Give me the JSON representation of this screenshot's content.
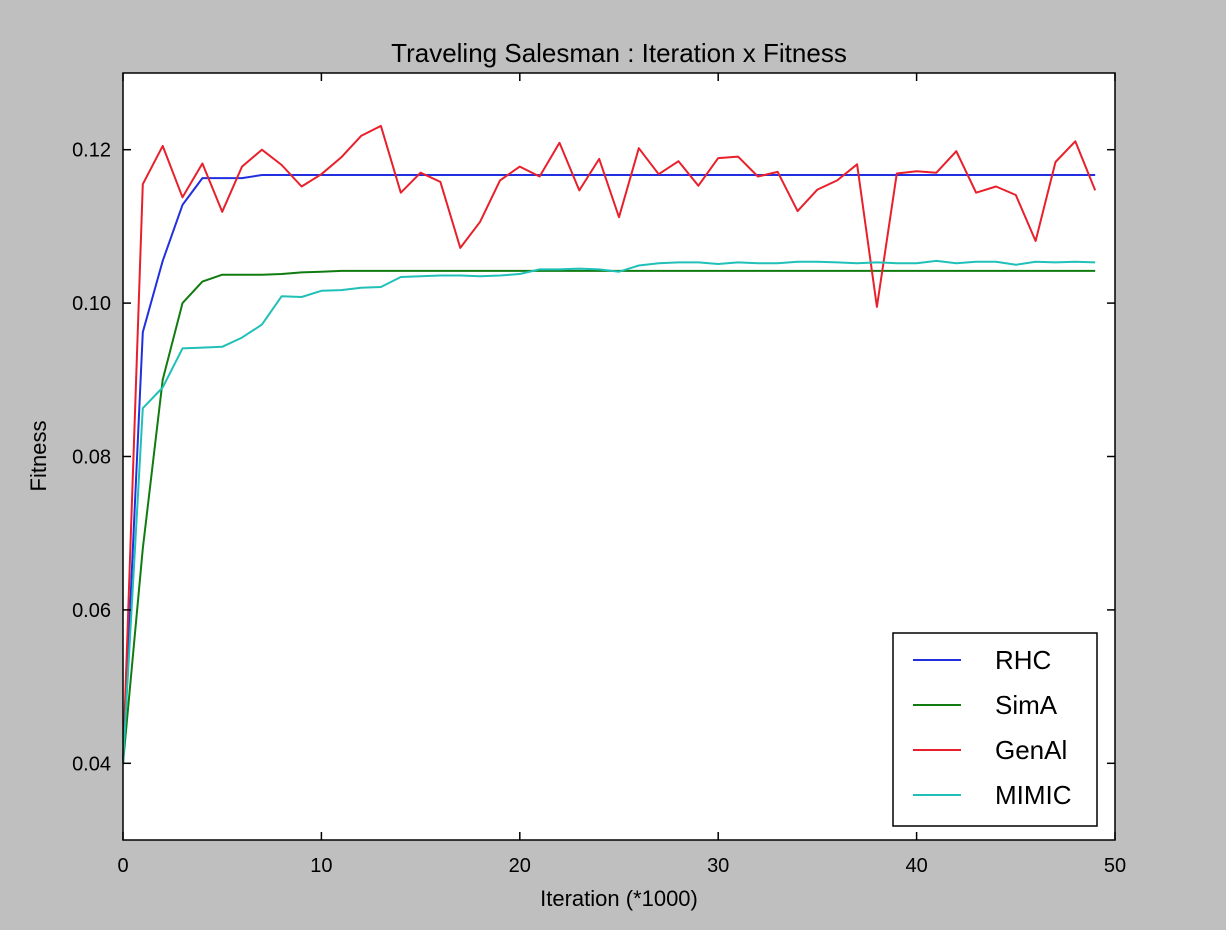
{
  "chart_data": {
    "type": "line",
    "title": "Traveling Salesman : Iteration x Fitness",
    "xlabel": "Iteration (*1000)",
    "ylabel": "Fitness",
    "xlim": [
      0,
      50
    ],
    "ylim": [
      0.03,
      0.13
    ],
    "xticks": [
      0,
      10,
      20,
      30,
      40,
      50
    ],
    "xtick_labels": [
      "0",
      "10",
      "20",
      "30",
      "40",
      "50"
    ],
    "yticks": [
      0.04,
      0.06,
      0.08,
      0.1,
      0.12
    ],
    "ytick_labels": [
      "0.04",
      "0.06",
      "0.08",
      "0.10",
      "0.12"
    ],
    "grid": false,
    "legend_position": "lower-right",
    "x": [
      0,
      1,
      2,
      3,
      4,
      5,
      6,
      7,
      8,
      9,
      10,
      11,
      12,
      13,
      14,
      15,
      16,
      17,
      18,
      19,
      20,
      21,
      22,
      23,
      24,
      25,
      26,
      27,
      28,
      29,
      30,
      31,
      32,
      33,
      34,
      35,
      36,
      37,
      38,
      39,
      40,
      41,
      42,
      43,
      44,
      45,
      46,
      47,
      48,
      49
    ],
    "series": [
      {
        "name": "RHC",
        "color": "#2030e0",
        "values": [
          0.04,
          0.0962,
          0.1055,
          0.1128,
          0.1163,
          0.1163,
          0.1163,
          0.1167,
          0.1167,
          0.1167,
          0.1167,
          0.1167,
          0.1167,
          0.1167,
          0.1167,
          0.1167,
          0.1167,
          0.1167,
          0.1167,
          0.1167,
          0.1167,
          0.1167,
          0.1167,
          0.1167,
          0.1167,
          0.1167,
          0.1167,
          0.1167,
          0.1167,
          0.1167,
          0.1167,
          0.1167,
          0.1167,
          0.1167,
          0.1167,
          0.1167,
          0.1167,
          0.1167,
          0.1167,
          0.1167,
          0.1167,
          0.1167,
          0.1167,
          0.1167,
          0.1167,
          0.1167,
          0.1167,
          0.1167,
          0.1167,
          0.1167
        ]
      },
      {
        "name": "SimA",
        "color": "#107c10",
        "values": [
          0.04,
          0.068,
          0.09,
          0.1,
          0.1028,
          0.1037,
          0.1037,
          0.1037,
          0.1038,
          0.104,
          0.1041,
          0.1042,
          0.1042,
          0.1042,
          0.1042,
          0.1042,
          0.1042,
          0.1042,
          0.1042,
          0.1042,
          0.1042,
          0.1042,
          0.1042,
          0.1042,
          0.1042,
          0.1042,
          0.1042,
          0.1042,
          0.1042,
          0.1042,
          0.1042,
          0.1042,
          0.1042,
          0.1042,
          0.1042,
          0.1042,
          0.1042,
          0.1042,
          0.1042,
          0.1042,
          0.1042,
          0.1042,
          0.1042,
          0.1042,
          0.1042,
          0.1042,
          0.1042,
          0.1042,
          0.1042,
          0.1042
        ]
      },
      {
        "name": "GenAl",
        "color": "#e8202c",
        "values": [
          0.04,
          0.1155,
          0.1205,
          0.1138,
          0.1182,
          0.1119,
          0.1178,
          0.12,
          0.118,
          0.1152,
          0.1168,
          0.119,
          0.1218,
          0.1231,
          0.1144,
          0.117,
          0.1158,
          0.1072,
          0.1106,
          0.116,
          0.1178,
          0.1165,
          0.1209,
          0.1147,
          0.1188,
          0.1112,
          0.1202,
          0.1168,
          0.1185,
          0.1153,
          0.1189,
          0.1191,
          0.1165,
          0.1171,
          0.112,
          0.1148,
          0.116,
          0.1181,
          0.0995,
          0.1169,
          0.1172,
          0.117,
          0.1198,
          0.1144,
          0.1152,
          0.1141,
          0.1081,
          0.1184,
          0.1211,
          0.1147
        ]
      },
      {
        "name": "MIMIC",
        "color": "#20c0b8",
        "values": [
          0.04,
          0.0863,
          0.089,
          0.0941,
          0.0942,
          0.0943,
          0.0955,
          0.0972,
          0.1009,
          0.1008,
          0.1016,
          0.1017,
          0.102,
          0.1021,
          0.1034,
          0.1035,
          0.1036,
          0.1036,
          0.1035,
          0.1036,
          0.1038,
          0.1044,
          0.1044,
          0.1045,
          0.1044,
          0.1041,
          0.1049,
          0.1052,
          0.1053,
          0.1053,
          0.1051,
          0.1053,
          0.1052,
          0.1052,
          0.1054,
          0.1054,
          0.1053,
          0.1052,
          0.1053,
          0.1052,
          0.1052,
          0.1055,
          0.1052,
          0.1054,
          0.1054,
          0.105,
          0.1054,
          0.1053,
          0.1054,
          0.1053
        ]
      }
    ]
  }
}
